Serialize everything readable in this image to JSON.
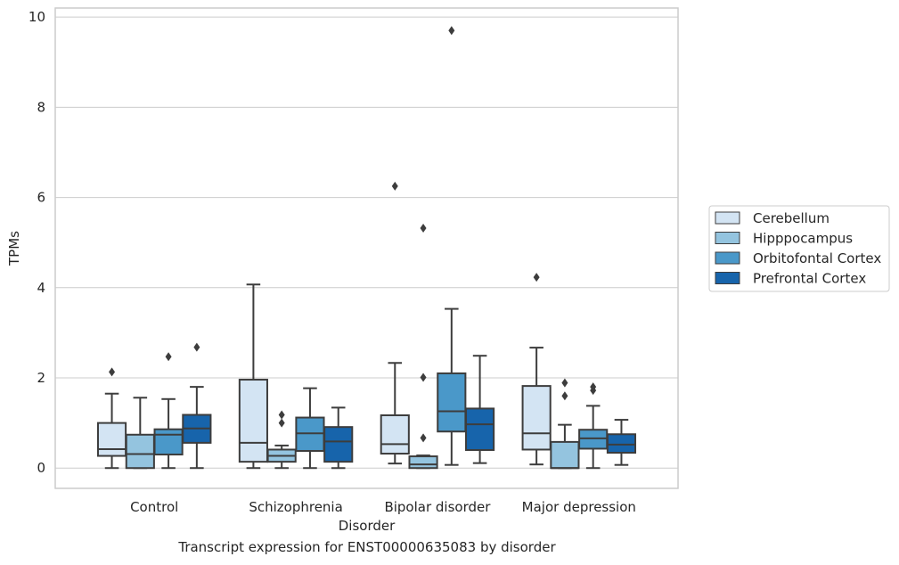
{
  "chart_data": {
    "type": "boxplot",
    "title": "",
    "caption": "Transcript expression for ENST00000635083 by disorder",
    "xlabel": "Disorder",
    "ylabel": "TPMs",
    "ylim": [
      -0.45,
      10.2
    ],
    "yticks": [
      0,
      2,
      4,
      6,
      8,
      10
    ],
    "grid": true,
    "legend_placement": "right-center",
    "categories": [
      "Control",
      "Schizophrenia",
      "Bipolar disorder",
      "Major depression"
    ],
    "series": [
      {
        "name": "Cerebellum",
        "color": "#d3e4f3",
        "boxes": [
          {
            "whislo": 0.0,
            "q1": 0.27,
            "med": 0.42,
            "q3": 1.0,
            "whishi": 1.65,
            "fliers": [
              2.13
            ]
          },
          {
            "whislo": 0.0,
            "q1": 0.14,
            "med": 0.56,
            "q3": 1.96,
            "whishi": 4.07,
            "fliers": []
          },
          {
            "whislo": 0.1,
            "q1": 0.32,
            "med": 0.53,
            "q3": 1.17,
            "whishi": 2.33,
            "fliers": [
              6.25
            ]
          },
          {
            "whislo": 0.08,
            "q1": 0.41,
            "med": 0.77,
            "q3": 1.82,
            "whishi": 2.67,
            "fliers": [
              4.23
            ]
          }
        ]
      },
      {
        "name": "Hipppocampus",
        "color": "#94c4df",
        "boxes": [
          {
            "whislo": 0.0,
            "q1": 0.0,
            "med": 0.31,
            "q3": 0.74,
            "whishi": 1.56,
            "fliers": []
          },
          {
            "whislo": 0.0,
            "q1": 0.14,
            "med": 0.27,
            "q3": 0.41,
            "whishi": 0.5,
            "fliers": [
              1.0,
              1.18
            ]
          },
          {
            "whislo": 0.0,
            "q1": 0.0,
            "med": 0.08,
            "q3": 0.26,
            "whishi": 0.28,
            "fliers": [
              0.67,
              2.01,
              5.32
            ]
          },
          {
            "whislo": 0.0,
            "q1": 0.0,
            "med": 0.0,
            "q3": 0.58,
            "whishi": 0.96,
            "fliers": [
              1.6,
              1.89
            ]
          }
        ]
      },
      {
        "name": "Orbitofontal Cortex",
        "color": "#4a98c9",
        "boxes": [
          {
            "whislo": 0.0,
            "q1": 0.3,
            "med": 0.74,
            "q3": 0.86,
            "whishi": 1.53,
            "fliers": [
              2.47
            ]
          },
          {
            "whislo": 0.0,
            "q1": 0.38,
            "med": 0.77,
            "q3": 1.12,
            "whishi": 1.77,
            "fliers": []
          },
          {
            "whislo": 0.07,
            "q1": 0.81,
            "med": 1.26,
            "q3": 2.1,
            "whishi": 3.53,
            "fliers": [
              9.7
            ]
          },
          {
            "whislo": 0.0,
            "q1": 0.43,
            "med": 0.66,
            "q3": 0.85,
            "whishi": 1.38,
            "fliers": [
              1.72,
              1.8
            ]
          }
        ]
      },
      {
        "name": "Prefrontal Cortex",
        "color": "#1764ab",
        "boxes": [
          {
            "whislo": 0.0,
            "q1": 0.56,
            "med": 0.88,
            "q3": 1.18,
            "whishi": 1.8,
            "fliers": [
              2.68
            ]
          },
          {
            "whislo": 0.0,
            "q1": 0.14,
            "med": 0.59,
            "q3": 0.91,
            "whishi": 1.34,
            "fliers": []
          },
          {
            "whislo": 0.11,
            "q1": 0.4,
            "med": 0.97,
            "q3": 1.32,
            "whishi": 2.49,
            "fliers": []
          },
          {
            "whislo": 0.07,
            "q1": 0.34,
            "med": 0.52,
            "q3": 0.75,
            "whishi": 1.07,
            "fliers": []
          }
        ]
      }
    ]
  }
}
